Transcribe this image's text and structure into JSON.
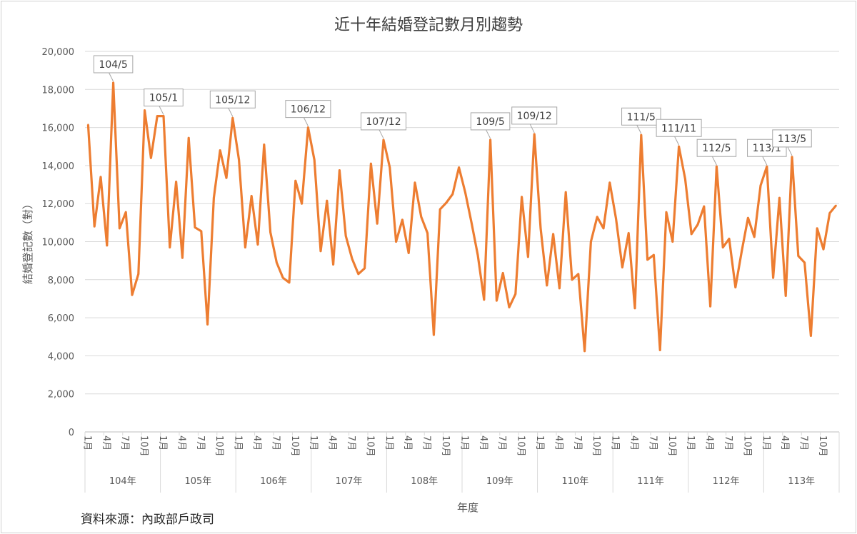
{
  "chart_data": {
    "type": "line",
    "title": "近十年結婚登記數月別趨勢",
    "xlabel": "年度",
    "ylabel": "結婚登記數（對）",
    "ylim": [
      0,
      20000
    ],
    "yticks": [
      "0",
      "2,000",
      "4,000",
      "6,000",
      "8,000",
      "10,000",
      "12,000",
      "14,000",
      "16,000",
      "18,000",
      "20,000"
    ],
    "ytick_values": [
      0,
      2000,
      4000,
      6000,
      8000,
      10000,
      12000,
      14000,
      16000,
      18000,
      20000
    ],
    "grid": true,
    "years": [
      "104年",
      "105年",
      "106年",
      "107年",
      "108年",
      "109年",
      "110年",
      "111年",
      "112年",
      "113年"
    ],
    "month_tick_labels": {
      "0": "1月",
      "3": "4月",
      "6": "7月",
      "9": "10月"
    },
    "line_color": "#ED7D31",
    "series": [
      {
        "name": "結婚登記數",
        "values": [
          16150,
          10800,
          13400,
          9800,
          18350,
          10700,
          11550,
          7200,
          8300,
          16900,
          14400,
          16600,
          16600,
          9700,
          13150,
          9150,
          15450,
          10750,
          10550,
          5650,
          12300,
          14800,
          13350,
          16500,
          14300,
          9700,
          12400,
          9850,
          15100,
          10500,
          8900,
          8100,
          7850,
          13200,
          12000,
          16000,
          14300,
          9500,
          12150,
          8800,
          13750,
          10300,
          9100,
          8300,
          8600,
          14100,
          10950,
          15350,
          13900,
          10000,
          11150,
          9400,
          13100,
          11300,
          10450,
          5100,
          11700,
          12050,
          12500,
          13900,
          12600,
          11000,
          9300,
          6950,
          15350,
          6900,
          8350,
          6550,
          7250,
          12350,
          9200,
          15650,
          10700,
          7700,
          10400,
          7550,
          12600,
          8000,
          8300,
          4250,
          10000,
          11300,
          10700,
          13100,
          11200,
          8650,
          10450,
          6500,
          15600,
          9050,
          9300,
          4300,
          11550,
          10000,
          15000,
          13300,
          10400,
          10900,
          11850,
          6600,
          13950,
          9700,
          10150,
          7600,
          9500,
          11250,
          10250,
          12950,
          13950,
          8100,
          12300,
          7150,
          14450,
          9250,
          8900,
          5050,
          10700,
          9600,
          11500,
          11900
        ]
      }
    ],
    "annotations": [
      {
        "label": "104/5",
        "index": 4
      },
      {
        "label": "105/1",
        "index": 12
      },
      {
        "label": "105/12",
        "index": 23
      },
      {
        "label": "106/12",
        "index": 35
      },
      {
        "label": "107/12",
        "index": 47
      },
      {
        "label": "109/5",
        "index": 64
      },
      {
        "label": "109/12",
        "index": 71
      },
      {
        "label": "111/5",
        "index": 88
      },
      {
        "label": "111/11",
        "index": 94
      },
      {
        "label": "112/5",
        "index": 100
      },
      {
        "label": "113/1",
        "index": 108
      },
      {
        "label": "113/5",
        "index": 112
      }
    ],
    "source_note": "資料來源：內政部戶政司"
  }
}
